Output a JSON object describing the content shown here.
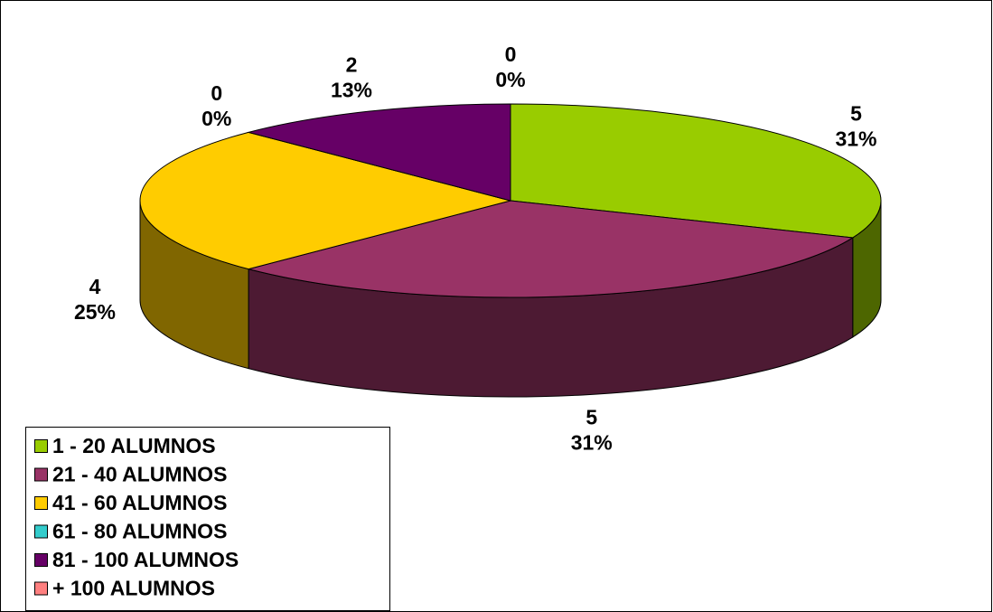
{
  "chart_data": {
    "type": "pie3d",
    "categories": [
      "1 - 20 ALUMNOS",
      "21 - 40 ALUMNOS",
      "41 - 60 ALUMNOS",
      "61 - 80 ALUMNOS",
      "81 - 100 ALUMNOS",
      "+ 100 ALUMNOS"
    ],
    "values": [
      5,
      5,
      4,
      0,
      2,
      0
    ],
    "percent_labels": [
      "31%",
      "31%",
      "25%",
      "0%",
      "13%",
      "0%"
    ],
    "colors": [
      "#99cc00",
      "#993366",
      "#ffcc00",
      "#33cccc",
      "#660066",
      "#ff8080"
    ],
    "legend": "bottom-left"
  }
}
